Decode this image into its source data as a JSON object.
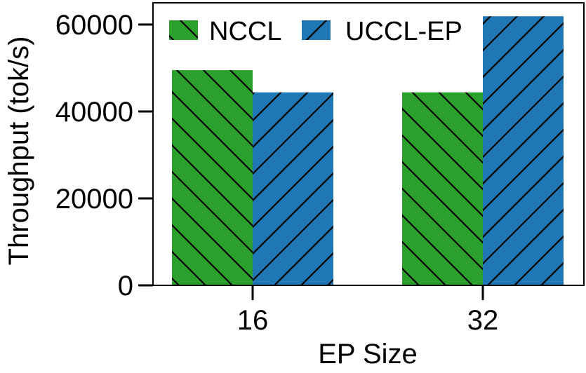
{
  "chart_data": {
    "type": "bar",
    "title": "",
    "xlabel": "EP Size",
    "ylabel": "Throughput (tok/s)",
    "categories": [
      "16",
      "32"
    ],
    "series": [
      {
        "name": "NCCL",
        "values": [
          49500,
          44400
        ],
        "color": "#2ca02c",
        "hatch": "\\"
      },
      {
        "name": "UCCL-EP",
        "values": [
          44400,
          61900
        ],
        "color": "#1f77b4",
        "hatch": "/"
      }
    ],
    "ylim": [
      0,
      65000
    ],
    "yticks": [
      0,
      20000,
      40000,
      60000
    ],
    "ytick_labels": [
      "0",
      "20000",
      "40000",
      "60000"
    ],
    "grid": false,
    "legend_position": "upper left"
  }
}
